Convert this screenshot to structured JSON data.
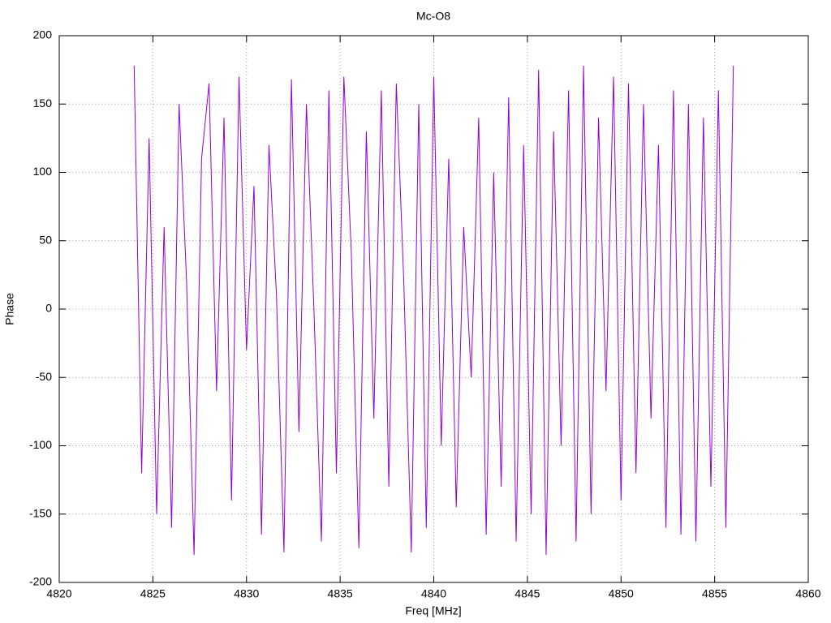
{
  "chart_data": {
    "type": "line",
    "title": "Mc-O8",
    "x_label": "Freq [MHz]",
    "y_label": "Phase",
    "x": [
      4824,
      4824.4,
      4824.8,
      4825.2,
      4825.6,
      4826,
      4826.4,
      4826.8,
      4827.2,
      4827.6,
      4828,
      4828.4,
      4828.8,
      4829.2,
      4829.6,
      4830,
      4830.4,
      4830.8,
      4831.2,
      4831.6,
      4832,
      4832.4,
      4832.8,
      4833.2,
      4833.6,
      4834,
      4834.4,
      4834.8,
      4835.2,
      4835.6,
      4836,
      4836.4,
      4836.8,
      4837.2,
      4837.6,
      4838,
      4838.4,
      4838.8,
      4839.2,
      4839.6,
      4840,
      4840.4,
      4840.8,
      4841.2,
      4841.6,
      4842,
      4842.4,
      4842.8,
      4843.2,
      4843.6,
      4844,
      4844.4,
      4844.8,
      4845.2,
      4845.6,
      4846,
      4846.4,
      4846.8,
      4847.2,
      4847.6,
      4848,
      4848.4,
      4848.8,
      4849.2,
      4849.6,
      4850,
      4850.4,
      4850.8,
      4851.2,
      4851.6,
      4852,
      4852.4,
      4852.8,
      4853.2,
      4853.6,
      4854,
      4854.4,
      4854.8,
      4855.2,
      4855.6,
      4856
    ],
    "values": [
      178,
      -120,
      125,
      -150,
      60,
      -160,
      150,
      20,
      -180,
      110,
      165,
      -60,
      140,
      -140,
      170,
      -30,
      90,
      -165,
      120,
      10,
      -178,
      168,
      -90,
      150,
      0,
      -170,
      160,
      -120,
      170,
      40,
      -175,
      130,
      -80,
      160,
      -130,
      165,
      20,
      -178,
      150,
      -160,
      170,
      -100,
      110,
      -145,
      60,
      -50,
      140,
      -165,
      100,
      -130,
      155,
      -170,
      120,
      -150,
      175,
      -180,
      130,
      -100,
      160,
      -170,
      178,
      -150,
      140,
      -60,
      170,
      -140,
      165,
      -120,
      150,
      -80,
      120,
      -160,
      160,
      -165,
      150,
      -170,
      140,
      -130,
      160,
      -160,
      178
    ],
    "color": "#9400d3",
    "xlim": [
      4820,
      4860
    ],
    "xticks": [
      4820,
      4825,
      4830,
      4835,
      4840,
      4845,
      4850,
      4855,
      4860
    ],
    "ylim": [
      -200,
      200
    ],
    "yticks": [
      -200,
      -150,
      -100,
      -50,
      0,
      50,
      100,
      150,
      200
    ],
    "grid": true
  }
}
